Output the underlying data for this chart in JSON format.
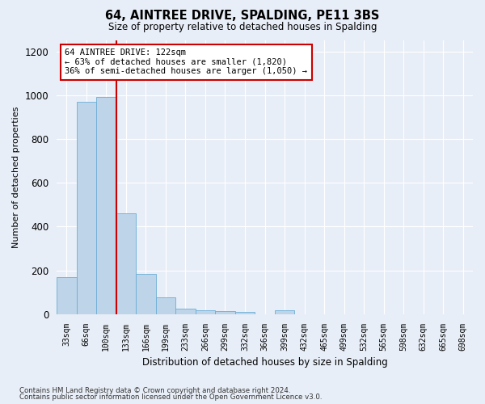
{
  "title": "64, AINTREE DRIVE, SPALDING, PE11 3BS",
  "subtitle": "Size of property relative to detached houses in Spalding",
  "xlabel": "Distribution of detached houses by size in Spalding",
  "ylabel": "Number of detached properties",
  "footnote1": "Contains HM Land Registry data © Crown copyright and database right 2024.",
  "footnote2": "Contains public sector information licensed under the Open Government Licence v3.0.",
  "bar_color": "#bdd4e9",
  "bar_edge_color": "#6baed6",
  "background_color": "#e8eef7",
  "categories": [
    "33sqm",
    "66sqm",
    "100sqm",
    "133sqm",
    "166sqm",
    "199sqm",
    "233sqm",
    "266sqm",
    "299sqm",
    "332sqm",
    "366sqm",
    "399sqm",
    "432sqm",
    "465sqm",
    "499sqm",
    "532sqm",
    "565sqm",
    "598sqm",
    "632sqm",
    "665sqm",
    "698sqm"
  ],
  "values": [
    170,
    970,
    990,
    460,
    185,
    75,
    25,
    18,
    13,
    10,
    0,
    18,
    0,
    0,
    0,
    0,
    0,
    0,
    0,
    0,
    0
  ],
  "ylim": [
    0,
    1250
  ],
  "yticks": [
    0,
    200,
    400,
    600,
    800,
    1000,
    1200
  ],
  "annotation_line1": "64 AINTREE DRIVE: 122sqm",
  "annotation_line2": "← 63% of detached houses are smaller (1,820)",
  "annotation_line3": "36% of semi-detached houses are larger (1,050) →",
  "vline_x": 2.5,
  "annotation_box_color": "#ffffff",
  "annotation_box_edge": "#cc0000",
  "vline_color": "#cc0000"
}
